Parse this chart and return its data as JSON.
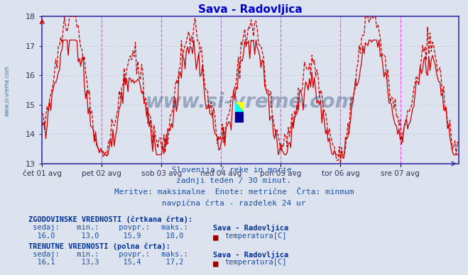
{
  "title": "Sava - Radovljica",
  "title_color": "#0000cc",
  "bg_color": "#dce3ee",
  "plot_bg_color": "#dce3ee",
  "grid_color": "#bbbbcc",
  "watermark_text": "www.si-vreme.com",
  "ylim": [
    13,
    18
  ],
  "yticks": [
    13,
    14,
    15,
    16,
    17,
    18
  ],
  "line_color": "#cc0000",
  "min_line_value": 13.0,
  "x_day_labels": [
    "čet 01 avg",
    "pet 02 avg",
    "sob 03 avg",
    "ned 04 avg",
    "pon 05 avg",
    "tor 06 avg",
    "sre 07 avg"
  ],
  "x_day_positions": [
    0,
    48,
    96,
    144,
    192,
    240,
    288
  ],
  "n_points": 336,
  "subtitle_lines": [
    "Slovenija / reke in morje.",
    "zadnji teden / 30 minut.",
    "Meritve: maksimalne  Enote: metrične  Črta: minmum",
    "navpična črta - razdelek 24 ur"
  ],
  "table_text_color": "#1a50aa",
  "table_bold_color": "#003399",
  "hist_label": "ZGODOVINSKE VREDNOSTI (črtkana črta):",
  "hist_sedaj": "16,0",
  "hist_min": "13,0",
  "hist_povpr": "15,9",
  "hist_maks": "18,0",
  "hist_station": "Sava - Radovljica",
  "hist_meas": "temperatura[C]",
  "curr_label": "TRENUTNE VREDNOSTI (polna črta):",
  "curr_sedaj": "16,1",
  "curr_min": "13,3",
  "curr_povpr": "15,4",
  "curr_maks": "17,2",
  "curr_station": "Sava - Radovljica",
  "curr_meas": "temperatura[C]",
  "icon_color": "#990000",
  "sidebar_text": "www.si-vreme.com",
  "sidebar_color": "#4477aa",
  "border_color": "#3333aa",
  "axis_color": "#3333aa"
}
